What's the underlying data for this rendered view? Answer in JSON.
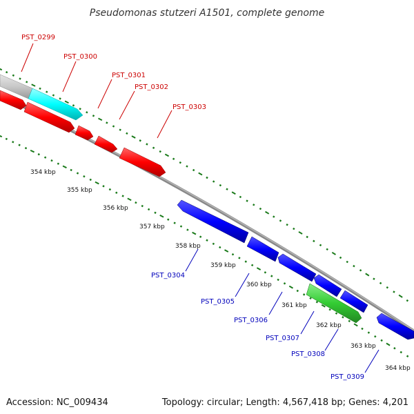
{
  "title": "Pseudomonas stutzeri A1501, complete genome",
  "accession": "Accession: NC_009434",
  "summary": "Topology: circular; Length: 4,567,418 bp; Genes: 4,201",
  "colors": {
    "forward_label": "#cc0000",
    "reverse_label": "#0000bb",
    "forward_gene": "#ff0000",
    "reverse_gene": "#0000ff",
    "highlight_gene": "#00ffff",
    "other_gene": "#33cc33",
    "grey_gene": "#c8c8c8",
    "backbone": "#888888",
    "ticks": "#1a7a1a"
  },
  "kbp_labels": [
    "354 kbp",
    "355 kbp",
    "356 kbp",
    "357 kbp",
    "358 kbp",
    "359 kbp",
    "360 kbp",
    "361 kbp",
    "362 kbp",
    "363 kbp",
    "364 kbp"
  ],
  "forward_genes": [
    "PST_0299",
    "PST_0300",
    "PST_0301",
    "PST_0302",
    "PST_0303"
  ],
  "reverse_genes": [
    "PST_0304",
    "PST_0305",
    "PST_0306",
    "PST_0307",
    "PST_0308",
    "PST_0309"
  ]
}
